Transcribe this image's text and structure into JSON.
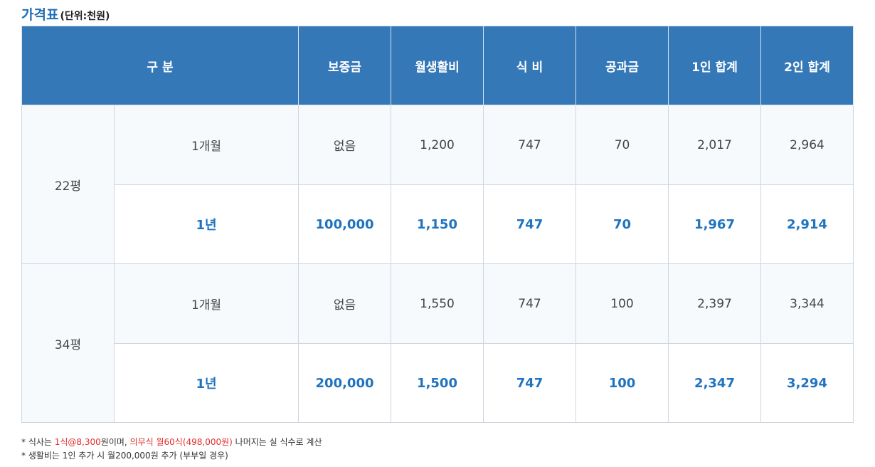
{
  "title": {
    "main": "가격표",
    "unit": "(단위:천원)"
  },
  "table": {
    "headers": [
      "구 분",
      "보증금",
      "월생활비",
      "식 비",
      "공과금",
      "1인 합계",
      "2인 합계"
    ],
    "groups": [
      {
        "size": "22평",
        "rows": [
          {
            "period": "1개월",
            "deposit": "없음",
            "living": "1,200",
            "meal": "747",
            "utility": "70",
            "total1": "2,017",
            "total2": "2,964"
          },
          {
            "period": "1년",
            "deposit": "100,000",
            "living": "1,150",
            "meal": "747",
            "utility": "70",
            "total1": "1,967",
            "total2": "2,914"
          }
        ]
      },
      {
        "size": "34평",
        "rows": [
          {
            "period": "1개월",
            "deposit": "없음",
            "living": "1,550",
            "meal": "747",
            "utility": "100",
            "total1": "2,397",
            "total2": "3,344"
          },
          {
            "period": "1년",
            "deposit": "200,000",
            "living": "1,500",
            "meal": "747",
            "utility": "100",
            "total1": "2,347",
            "total2": "3,294"
          }
        ]
      }
    ]
  },
  "notes": {
    "line1": {
      "prefix": "* 식사는 ",
      "meal_price": "1식@8,300",
      "mid": "원이며, ",
      "mandatory": "의무식 월60식(498,000원)",
      "suffix": " 나머지는 실 식수로 계산"
    },
    "line2": "* 생활비는 1인 추가 시 월200,000원 추가 (부부일 경우)"
  },
  "colors": {
    "header_bg": "#3478b8",
    "accent_text": "#1f73bf",
    "title_text": "#1f6fb6",
    "highlight_red": "#e02b2b"
  }
}
